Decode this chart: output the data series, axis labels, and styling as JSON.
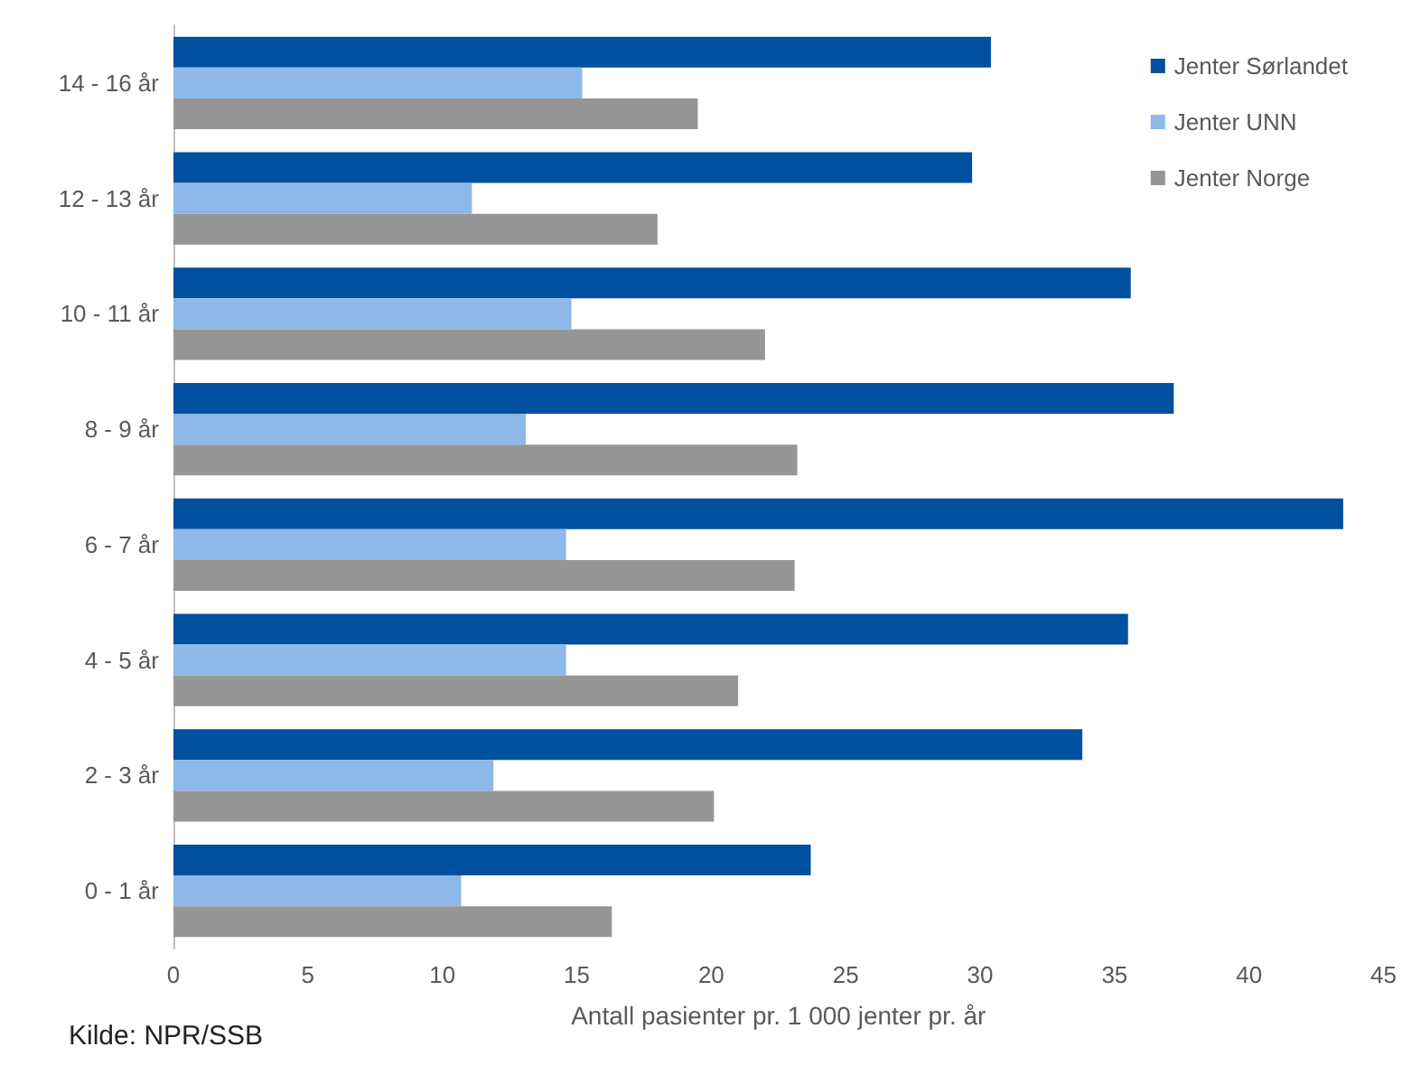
{
  "chart_data": {
    "type": "bar",
    "orientation": "horizontal",
    "xlabel": "Antall pasienter pr. 1 000 jenter pr. år",
    "categories": [
      "14 - 16 år",
      "12 - 13 år",
      "10 - 11 år",
      "8 - 9 år",
      "6 - 7 år",
      "4 - 5 år",
      "2 - 3 år",
      "0 - 1 år"
    ],
    "series": [
      {
        "name": "Jenter Sørlandet",
        "color": "#0050a0",
        "values": [
          30.4,
          29.7,
          35.6,
          37.2,
          43.5,
          35.5,
          33.8,
          23.7
        ]
      },
      {
        "name": "Jenter UNN",
        "color": "#8db8e8",
        "values": [
          15.2,
          11.1,
          14.8,
          13.1,
          14.6,
          14.6,
          11.9,
          10.7
        ]
      },
      {
        "name": "Jenter Norge",
        "color": "#969696",
        "values": [
          19.5,
          18.0,
          22.0,
          23.2,
          23.1,
          21.0,
          20.1,
          16.3
        ]
      }
    ],
    "xlim": [
      0,
      45
    ],
    "xticks": [
      0,
      5,
      10,
      15,
      20,
      25,
      30,
      35,
      40,
      45
    ],
    "grid": false,
    "legend": "top right",
    "annotations": [
      "Kilde: NPR/SSB"
    ]
  }
}
